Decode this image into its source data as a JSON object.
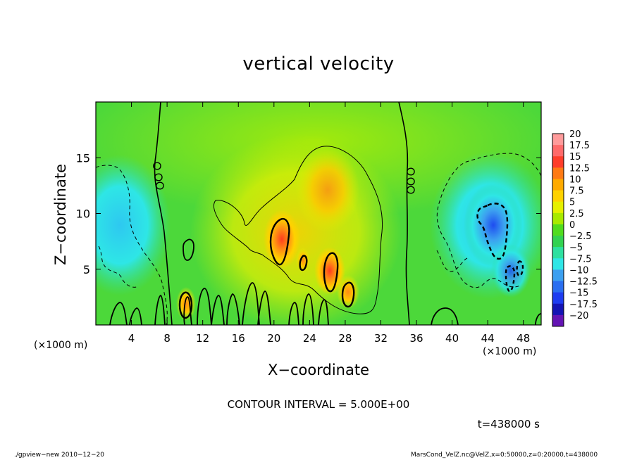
{
  "chart_data": {
    "type": "heatmap",
    "title": "vertical velocity",
    "xlabel": "X−coordinate",
    "ylabel": "Z−coordinate",
    "x_unit_label": "(×1000 m)",
    "y_unit_label": "(×1000 m)",
    "xlim": [
      0,
      50
    ],
    "ylim": [
      0,
      20
    ],
    "x_ticks": [
      4,
      8,
      12,
      16,
      20,
      24,
      28,
      32,
      36,
      40,
      44,
      48
    ],
    "y_ticks": [
      5,
      10,
      15
    ],
    "contour_interval_text": "CONTOUR INTERVAL = 5.000E+00",
    "time_text": "t=438000 s",
    "colorbar": {
      "levels": [
        20,
        17.5,
        15,
        12.5,
        10,
        7.5,
        5,
        2.5,
        0,
        -2.5,
        -5,
        -7.5,
        -10,
        -12.5,
        -15,
        -17.5,
        -20
      ],
      "labels": [
        "20",
        "17.5",
        "15",
        "12.5",
        "10",
        "7.5",
        "5",
        "2.5",
        "0",
        "−2.5",
        "−5",
        "−7.5",
        "−10",
        "−12.5",
        "−15",
        "−17.5",
        "−20"
      ],
      "colors": [
        "#ff9b9b",
        "#ff6a6a",
        "#ff3d2a",
        "#ff7a14",
        "#ffaa00",
        "#ffd200",
        "#e6f000",
        "#a8ea00",
        "#50dc1e",
        "#32d250",
        "#2ee0a0",
        "#2ee6e6",
        "#3ca0f0",
        "#2a6ef0",
        "#1e3cf0",
        "#1414b4",
        "#6414b4"
      ]
    },
    "features": [
      {
        "kind": "updraft",
        "x": 20.5,
        "z": 8.0,
        "peak": 12
      },
      {
        "kind": "updraft",
        "x": 26.5,
        "z": 5.0,
        "peak": 11
      },
      {
        "kind": "updraft",
        "x": 28.5,
        "z": 3.0,
        "peak": 10
      },
      {
        "kind": "updraft",
        "x": 23.5,
        "z": 5.8,
        "peak": 8
      },
      {
        "kind": "updraft",
        "x": 10.2,
        "z": 1.8,
        "peak": 7
      },
      {
        "kind": "updraft",
        "x": 25.5,
        "z": 12.5,
        "peak": 7
      },
      {
        "kind": "downdraft",
        "x": 45.0,
        "z": 8.5,
        "peak": -11
      },
      {
        "kind": "downdraft",
        "x": 47.0,
        "z": 5.0,
        "peak": -8
      },
      {
        "kind": "downdraft",
        "x": 1.5,
        "z": 10.0,
        "peak": -7
      }
    ]
  },
  "footer": {
    "left": "./gpview−new  2010−12−20",
    "right": "MarsCond_VelZ.nc@VelZ,x=0:50000,z=0:20000,t=438000"
  }
}
